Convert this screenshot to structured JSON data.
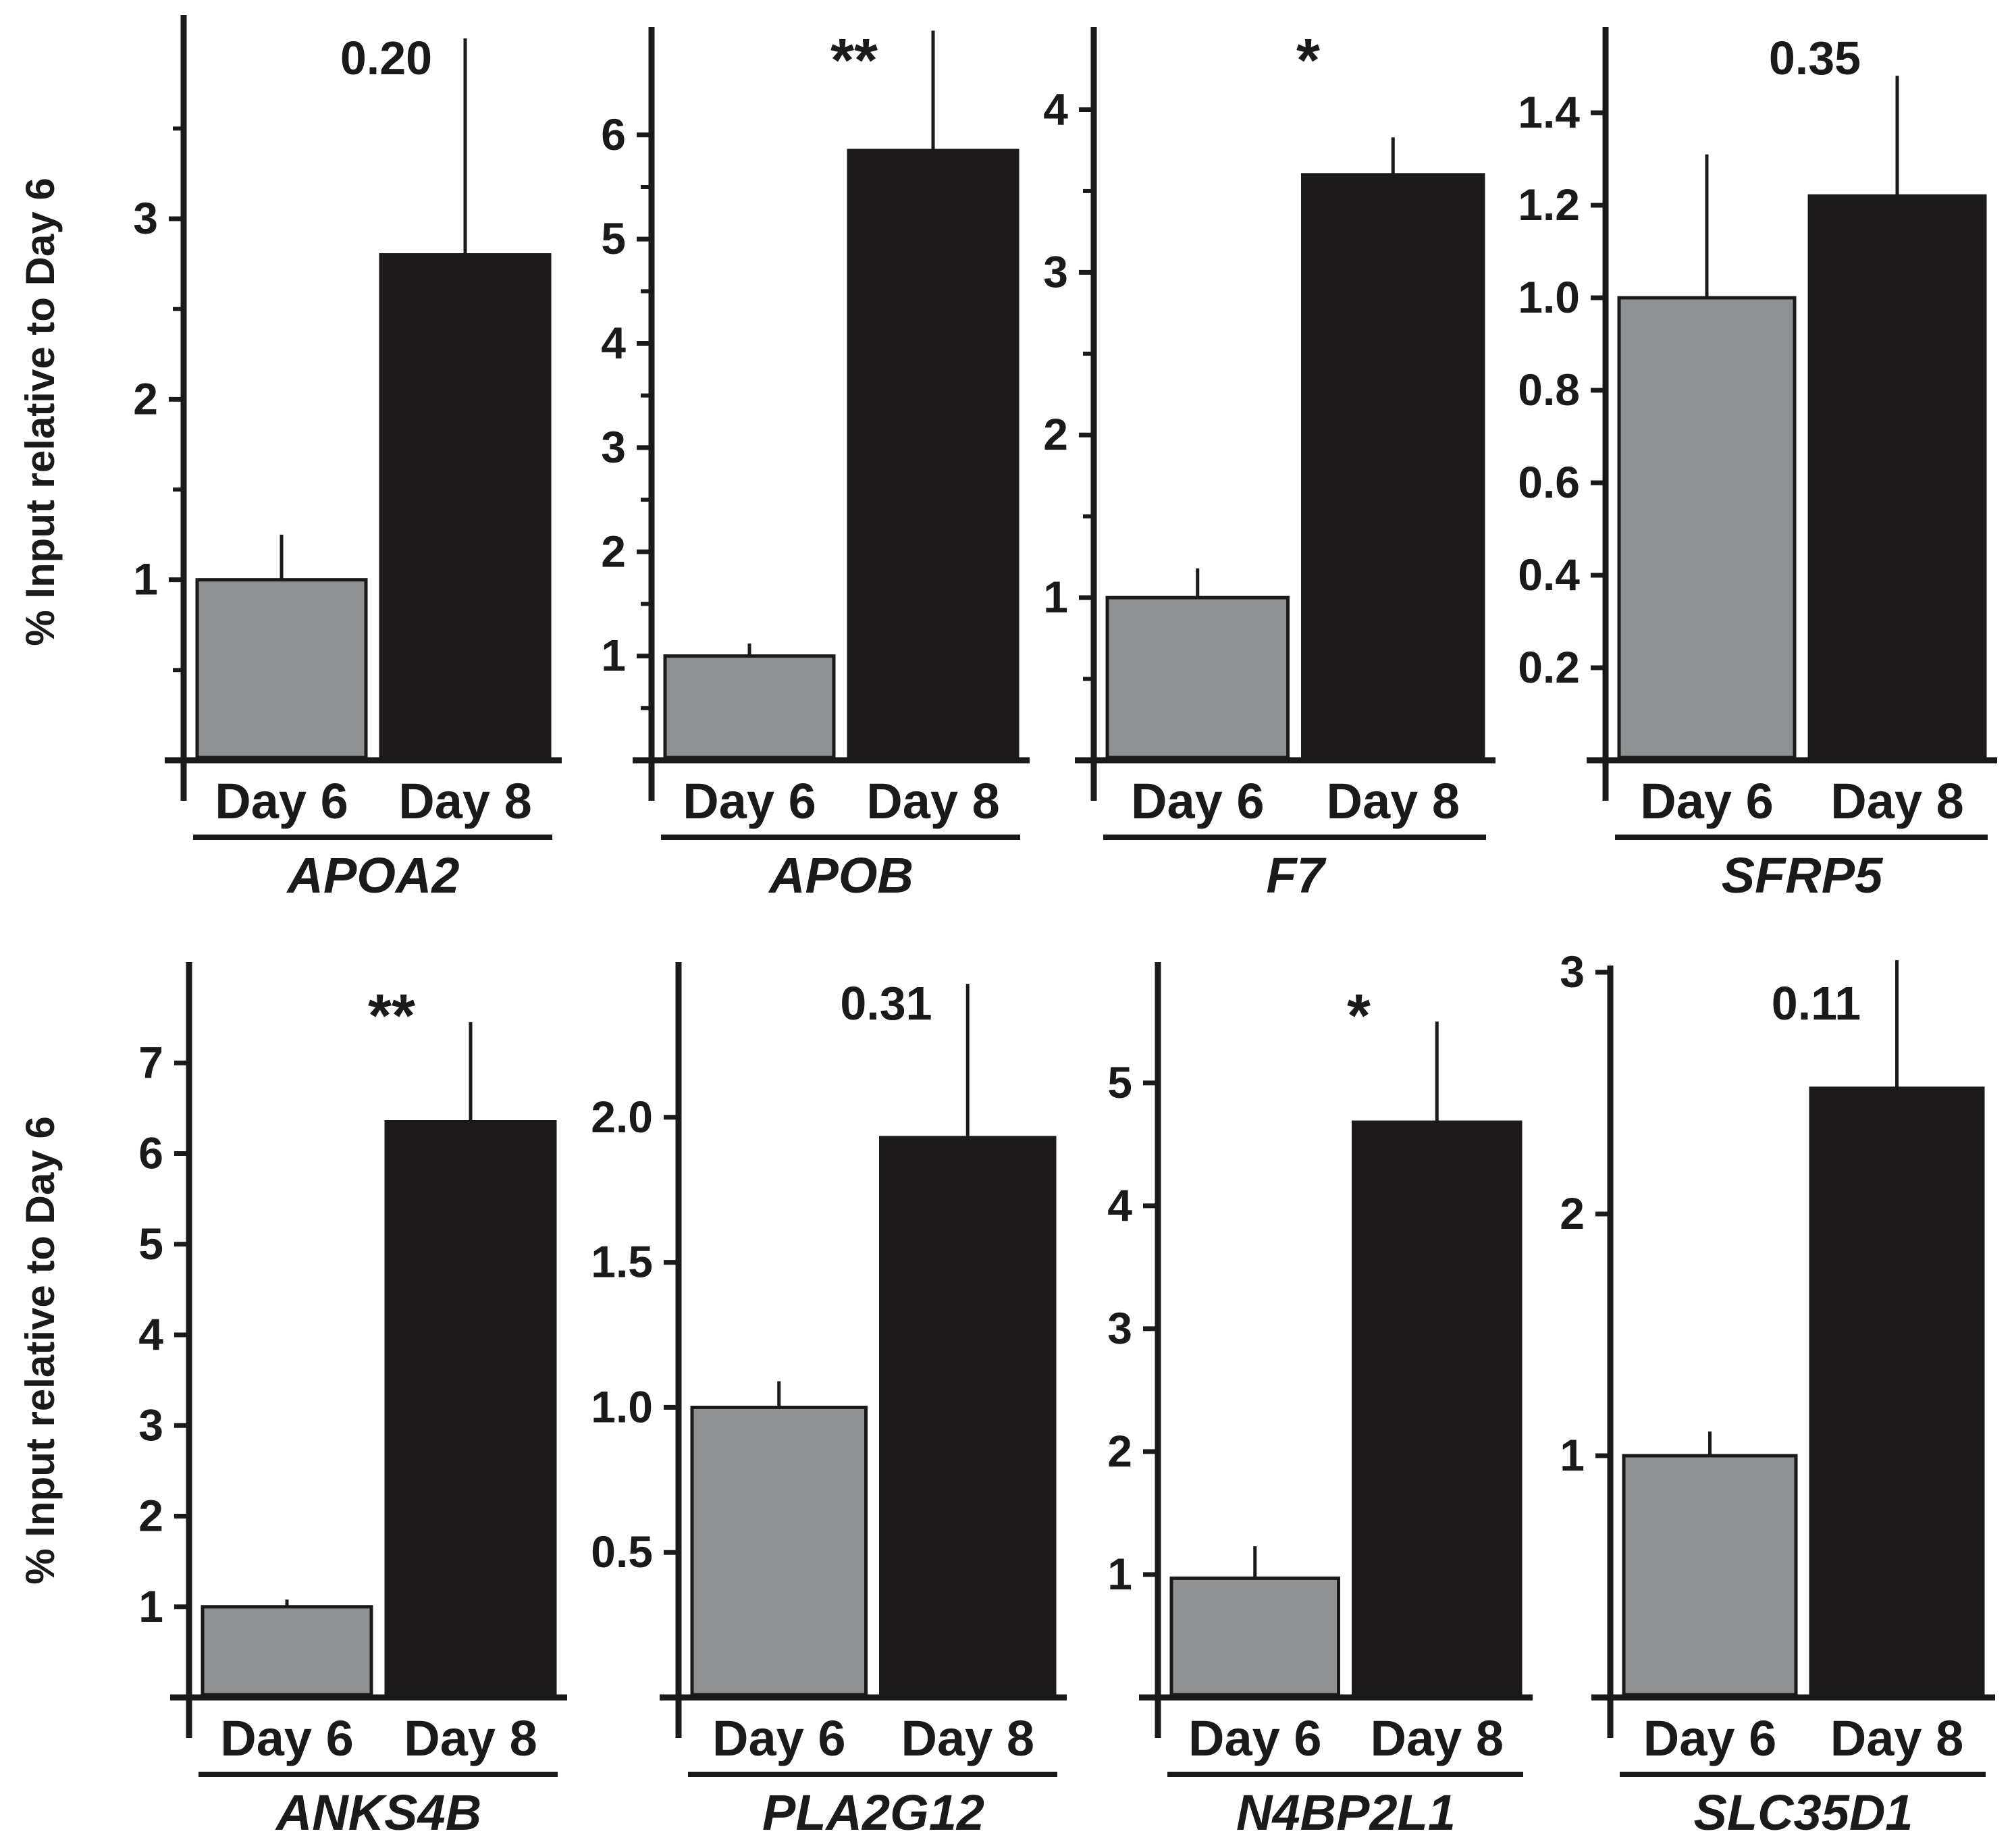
{
  "colors": {
    "day6": "#8e9092",
    "day8": "#1e1a1c",
    "axis": "#1a1a1a",
    "bar_outline": "#1a1a1a"
  },
  "ylabel": "% Input relative to Day 6",
  "chart_data": [
    {
      "type": "bar",
      "gene": "APOA2",
      "annotation": "0.20",
      "categories": [
        "Day 6",
        "Day 8"
      ],
      "values": [
        1.0,
        2.8
      ],
      "errors": [
        0.25,
        1.2
      ],
      "ylim": [
        0,
        4.1
      ],
      "ticks": [
        1,
        2,
        3
      ],
      "minor_ticks": [
        0.5,
        1.5,
        2.5,
        3.5
      ],
      "tick_labels": [
        "1",
        "2",
        "3"
      ]
    },
    {
      "type": "bar",
      "gene": "APOB",
      "annotation": "**",
      "categories": [
        "Day 6",
        "Day 8"
      ],
      "values": [
        1.0,
        5.85
      ],
      "errors": [
        0.12,
        1.15
      ],
      "ylim": [
        0,
        7.1
      ],
      "ticks": [
        1,
        2,
        3,
        4,
        5,
        6
      ],
      "minor_ticks": [
        0.5,
        1.5,
        2.5,
        3.5,
        4.5,
        5.5
      ],
      "tick_labels": [
        "1",
        "2",
        "3",
        "4",
        "5",
        "6"
      ]
    },
    {
      "type": "bar",
      "gene": "F7",
      "annotation": "*",
      "categories": [
        "Day 6",
        "Day 8"
      ],
      "values": [
        1.0,
        3.6
      ],
      "errors": [
        0.18,
        0.23
      ],
      "ylim": [
        0,
        4.55
      ],
      "ticks": [
        1,
        2,
        3,
        4
      ],
      "minor_ticks": [
        0.5,
        1.5,
        2.5,
        3.5
      ],
      "tick_labels": [
        "1",
        "2",
        "3",
        "4"
      ]
    },
    {
      "type": "bar",
      "gene": "SFRP5",
      "annotation": "0.35",
      "categories": [
        "Day 6",
        "Day 8"
      ],
      "values": [
        1.0,
        1.22
      ],
      "errors": [
        0.31,
        0.26
      ],
      "ylim": [
        0,
        1.6
      ],
      "ticks": [
        0.2,
        0.4,
        0.6,
        0.8,
        1.0,
        1.2,
        1.4
      ],
      "minor_ticks": [],
      "tick_labels": [
        "0.2",
        "0.4",
        "0.6",
        "0.8",
        "1.0",
        "1.2",
        "1.4"
      ]
    },
    {
      "type": "bar",
      "gene": "ANKS4B",
      "annotation": "**",
      "categories": [
        "Day 6",
        "Day 8"
      ],
      "values": [
        1.0,
        6.35
      ],
      "errors": [
        0.08,
        1.1
      ],
      "ylim": [
        0,
        8.0
      ],
      "ticks": [
        1,
        2,
        3,
        4,
        5,
        6,
        7
      ],
      "minor_ticks": [],
      "tick_labels": [
        "1",
        "2",
        "3",
        "4",
        "5",
        "6",
        "7"
      ]
    },
    {
      "type": "bar",
      "gene": "PLA2G12",
      "annotation": "0.31",
      "categories": [
        "Day 6",
        "Day 8"
      ],
      "values": [
        1.0,
        1.93
      ],
      "errors": [
        0.09,
        0.53
      ],
      "ylim": [
        0,
        2.5
      ],
      "ticks": [
        0.5,
        1.0,
        1.5,
        2.0
      ],
      "minor_ticks": [],
      "tick_labels": [
        "0.5",
        "1.0",
        "1.5",
        "2.0"
      ]
    },
    {
      "type": "bar",
      "gene": "N4BP2L1",
      "annotation": "*",
      "categories": [
        "Day 6",
        "Day 8"
      ],
      "values": [
        0.97,
        4.68
      ],
      "errors": [
        0.26,
        0.82
      ],
      "ylim": [
        0,
        5.9
      ],
      "ticks": [
        1,
        2,
        3,
        4,
        5
      ],
      "minor_ticks": [],
      "tick_labels": [
        "1",
        "2",
        "3",
        "4",
        "5"
      ]
    },
    {
      "type": "bar",
      "gene": "SLC35D1",
      "annotation": "0.11",
      "categories": [
        "Day 6",
        "Day 8"
      ],
      "values": [
        1.0,
        2.52
      ],
      "errors": [
        0.1,
        0.53
      ],
      "ylim": [
        0,
        3.0
      ],
      "ticks": [
        1,
        2,
        3
      ],
      "minor_ticks": [],
      "tick_labels": [
        "1",
        "2",
        "3"
      ]
    }
  ]
}
